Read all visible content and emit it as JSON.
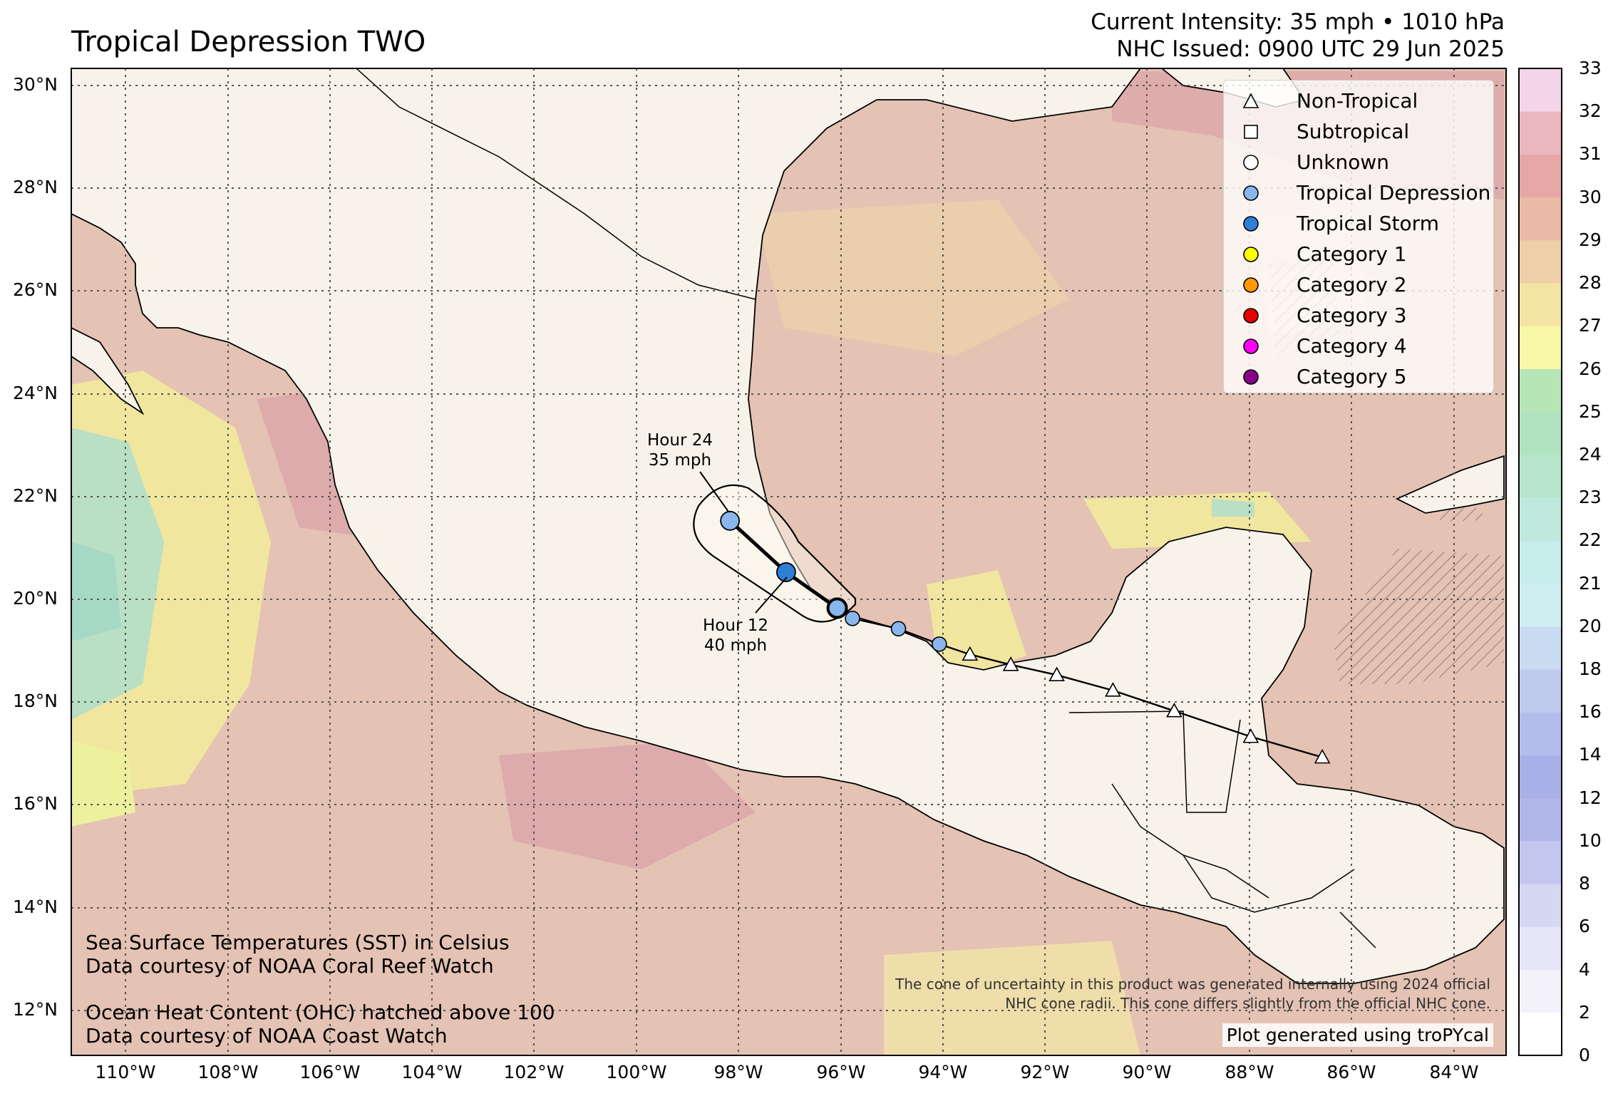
{
  "title": "Tropical Depression TWO",
  "header": {
    "intensity": "Current Intensity: 35 mph • 1010 hPa",
    "issued": "NHC Issued: 0900 UTC 29 Jun 2025"
  },
  "legend": [
    {
      "label": "Non-Tropical",
      "shape": "triangle",
      "color": "#ffffff"
    },
    {
      "label": "Subtropical",
      "shape": "square",
      "color": "#ffffff"
    },
    {
      "label": "Unknown",
      "shape": "circle",
      "color": "#ffffff"
    },
    {
      "label": "Tropical Depression",
      "shape": "circle",
      "color": "#89b6ec"
    },
    {
      "label": "Tropical Storm",
      "shape": "circle",
      "color": "#2e7fd6"
    },
    {
      "label": "Category 1",
      "shape": "circle",
      "color": "#ffff00"
    },
    {
      "label": "Category 2",
      "shape": "circle",
      "color": "#ff9900"
    },
    {
      "label": "Category 3",
      "shape": "circle",
      "color": "#e60000"
    },
    {
      "label": "Category 4",
      "shape": "circle",
      "color": "#ff00ff"
    },
    {
      "label": "Category 5",
      "shape": "circle",
      "color": "#8b008b"
    }
  ],
  "notes": {
    "sst_line1": "Sea Surface Temperatures (SST) in Celsius",
    "sst_line2": "Data courtesy of NOAA Coral Reef Watch",
    "ohc_line1": "Ocean Heat Content (OHC) hatched above 100",
    "ohc_line2": "Data courtesy of NOAA Coast Watch",
    "cone_line1": "The cone of uncertainty in this product was generated internally using 2024 official",
    "cone_line2": "NHC cone radii. This cone differs slightly from the official NHC cone.",
    "credit": "Plot generated using troPYcal"
  },
  "map": {
    "lon_range": [
      -111,
      -82.9
    ],
    "lat_range": [
      11.2,
      30.4
    ],
    "lon_ticks": [
      "110°W",
      "108°W",
      "106°W",
      "104°W",
      "102°W",
      "100°W",
      "98°W",
      "96°W",
      "94°W",
      "92°W",
      "90°W",
      "88°W",
      "86°W",
      "84°W"
    ],
    "lat_ticks": [
      "30°N",
      "28°N",
      "26°N",
      "24°N",
      "22°N",
      "20°N",
      "18°N",
      "16°N",
      "14°N",
      "12°N"
    ],
    "ocean_color": "#e4c2b4",
    "land_color": "#f8f3ea"
  },
  "track_history": [
    {
      "lon": -86.5,
      "lat": 17.0,
      "type": "Non-Tropical"
    },
    {
      "lon": -87.9,
      "lat": 17.4,
      "type": "Non-Tropical"
    },
    {
      "lon": -89.4,
      "lat": 17.9,
      "type": "Non-Tropical"
    },
    {
      "lon": -90.6,
      "lat": 18.3,
      "type": "Non-Tropical"
    },
    {
      "lon": -91.7,
      "lat": 18.6,
      "type": "Non-Tropical"
    },
    {
      "lon": -92.6,
      "lat": 18.8,
      "type": "Non-Tropical"
    },
    {
      "lon": -93.4,
      "lat": 19.0,
      "type": "Non-Tropical"
    },
    {
      "lon": -94.0,
      "lat": 19.2,
      "type": "Tropical Depression"
    },
    {
      "lon": -94.8,
      "lat": 19.5,
      "type": "Tropical Depression"
    },
    {
      "lon": -95.7,
      "lat": 19.7,
      "type": "Tropical Depression"
    }
  ],
  "current_position": {
    "lon": -96.0,
    "lat": 19.9
  },
  "forecast": [
    {
      "lon": -96.0,
      "lat": 19.9,
      "type": "Tropical Depression"
    },
    {
      "lon": -97.0,
      "lat": 20.6,
      "type": "Tropical Storm",
      "label_line1": "Hour 12",
      "label_line2": "40 mph"
    },
    {
      "lon": -98.1,
      "lat": 21.6,
      "type": "Tropical Depression",
      "label_line1": "Hour 24",
      "label_line2": "35 mph"
    }
  ],
  "colorbar": {
    "ticks": [
      0,
      2,
      4,
      6,
      8,
      10,
      12,
      14,
      16,
      18,
      20,
      21,
      22,
      23,
      24,
      25,
      26,
      27,
      28,
      29,
      30,
      31,
      32,
      33
    ]
  }
}
